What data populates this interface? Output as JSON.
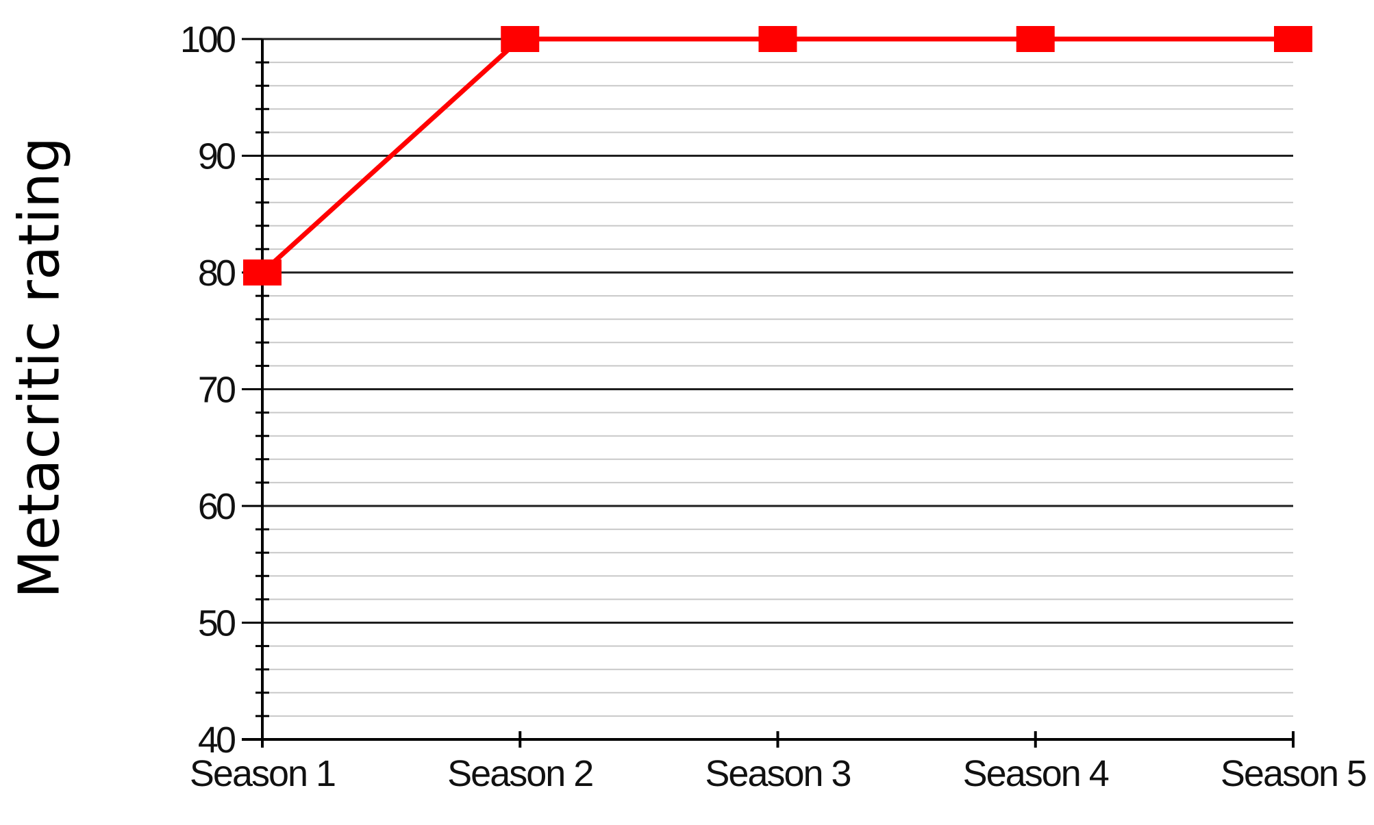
{
  "chart_data": {
    "type": "line",
    "title": "",
    "xlabel": "",
    "ylabel": "Metacritic rating",
    "categories": [
      "Season 1",
      "Season 2",
      "Season 3",
      "Season 4",
      "Season 5"
    ],
    "series": [
      {
        "values": [
          80,
          100,
          100,
          100,
          100
        ],
        "color": "#ff0000",
        "marker": "square"
      }
    ],
    "ylim": [
      40,
      100
    ],
    "yticks": [
      40,
      50,
      60,
      70,
      80,
      90,
      100
    ],
    "ytick_labels": [
      "40",
      "50",
      "60",
      "70",
      "80",
      "90",
      "100"
    ],
    "grid": true,
    "minor_grid": true,
    "legend": "none"
  }
}
